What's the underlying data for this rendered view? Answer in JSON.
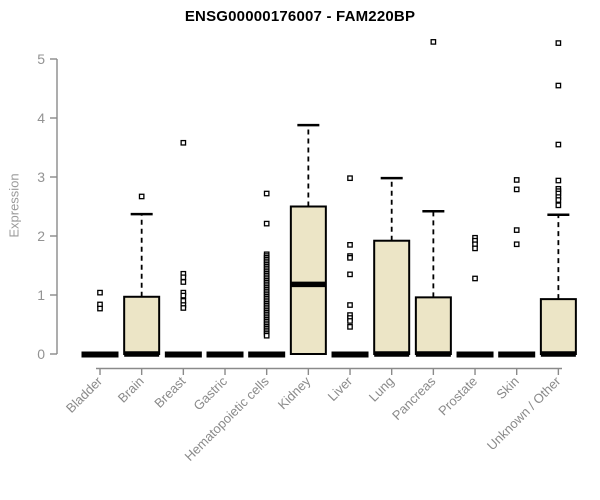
{
  "title": "ENSG00000176007 - FAM220BP",
  "y_axis": {
    "label": "Expression"
  },
  "colors": {
    "box_fill": "#ece5c6",
    "box_stroke": "#000000",
    "axis": "#8a8a8a",
    "tick_label": "#939393",
    "title_color": "#000000",
    "outlier_fill": "#ffffff"
  },
  "chart_data": {
    "type": "boxplot",
    "title": "ENSG00000176007 - FAM220BP",
    "xlabel": "",
    "ylabel": "Expression",
    "ylim": [
      0,
      5
    ],
    "yticks": [
      0,
      1,
      2,
      3,
      4,
      5
    ],
    "grid": false,
    "legend": false,
    "categories": [
      "Bladder",
      "Brain",
      "Breast",
      "Gastric",
      "Hematopoietic cells",
      "Kidney",
      "Liver",
      "Lung",
      "Pancreas",
      "Prostate",
      "Skin",
      "Unknown / Other"
    ],
    "boxes": [
      {
        "category": "Bladder",
        "q1": 0,
        "median": 0,
        "q3": 0,
        "whisker_low": 0,
        "whisker_high": 0,
        "outliers": [
          1.04,
          0.84,
          0.77
        ]
      },
      {
        "category": "Brain",
        "q1": 0,
        "median": 0,
        "q3": 0.97,
        "whisker_low": 0,
        "whisker_high": 2.37,
        "outliers": [
          2.67
        ]
      },
      {
        "category": "Breast",
        "q1": 0,
        "median": 0,
        "q3": 0,
        "whisker_low": 0,
        "whisker_high": 0,
        "outliers": [
          3.58,
          1.36,
          1.3,
          1.22,
          1.04,
          0.99,
          0.9,
          0.83,
          0.78
        ]
      },
      {
        "category": "Gastric",
        "q1": 0,
        "median": 0,
        "q3": 0,
        "whisker_low": 0,
        "whisker_high": 0,
        "outliers": []
      },
      {
        "category": "Hematopoietic cells",
        "q1": 0,
        "median": 0,
        "q3": 0,
        "whisker_low": 0,
        "whisker_high": 0,
        "outliers": [
          2.72,
          2.21,
          1.69,
          1.66,
          1.63,
          1.6,
          1.57,
          1.54,
          1.51,
          1.48,
          1.45,
          1.42,
          1.39,
          1.36,
          1.33,
          1.3,
          1.27,
          1.24,
          1.21,
          1.18,
          1.15,
          1.12,
          1.09,
          1.06,
          1.03,
          1.0,
          0.97,
          0.94,
          0.91,
          0.88,
          0.85,
          0.82,
          0.79,
          0.76,
          0.73,
          0.7,
          0.67,
          0.64,
          0.61,
          0.58,
          0.55,
          0.52,
          0.49,
          0.46,
          0.43,
          0.4,
          0.37,
          0.34,
          0.31
        ]
      },
      {
        "category": "Kidney",
        "q1": 0,
        "median": 1.18,
        "q3": 2.5,
        "whisker_low": 0,
        "whisker_high": 3.88,
        "outliers": []
      },
      {
        "category": "Liver",
        "q1": 0,
        "median": 0,
        "q3": 0,
        "whisker_low": 0,
        "whisker_high": 0,
        "outliers": [
          2.98,
          1.85,
          1.66,
          1.63,
          1.35,
          0.83,
          0.66,
          0.61,
          0.56,
          0.46
        ]
      },
      {
        "category": "Lung",
        "q1": 0,
        "median": 0,
        "q3": 1.92,
        "whisker_low": 0,
        "whisker_high": 2.98,
        "outliers": []
      },
      {
        "category": "Pancreas",
        "q1": 0,
        "median": 0,
        "q3": 0.96,
        "whisker_low": 0,
        "whisker_high": 2.42,
        "outliers": [
          5.29
        ]
      },
      {
        "category": "Prostate",
        "q1": 0,
        "median": 0,
        "q3": 0,
        "whisker_low": 0,
        "whisker_high": 0,
        "outliers": [
          1.97,
          1.92,
          1.86,
          1.79,
          1.28
        ]
      },
      {
        "category": "Skin",
        "q1": 0,
        "median": 0,
        "q3": 0,
        "whisker_low": 0,
        "whisker_high": 0,
        "outliers": [
          2.95,
          2.79,
          2.1,
          1.86
        ]
      },
      {
        "category": "Unknown / Other",
        "q1": 0,
        "median": 0,
        "q3": 0.93,
        "whisker_low": 0,
        "whisker_high": 2.36,
        "outliers": [
          5.27,
          4.55,
          3.55,
          2.94,
          2.8,
          2.76,
          2.72,
          2.66,
          2.61,
          2.52
        ]
      }
    ]
  }
}
